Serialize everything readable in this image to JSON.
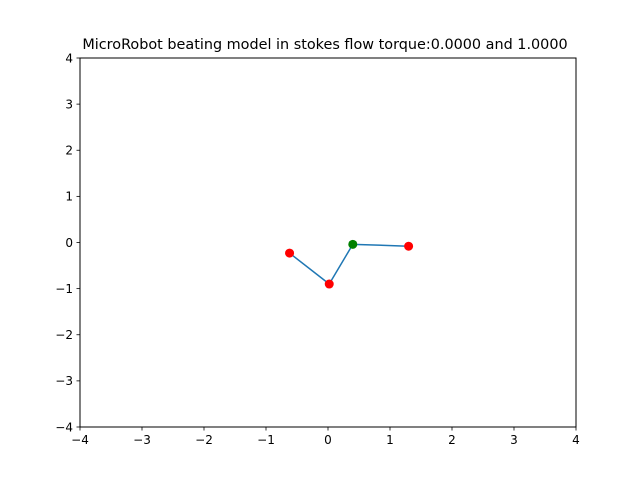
{
  "chart_data": {
    "type": "line",
    "title": "MicroRobot beating model in stokes flow torque:0.0000 and 1.0000",
    "xlabel": "",
    "ylabel": "",
    "xlim": [
      -4,
      4
    ],
    "ylim": [
      -4,
      4
    ],
    "grid": false,
    "x_ticks": [
      {
        "value": -4,
        "label": "−4"
      },
      {
        "value": -3,
        "label": "−3"
      },
      {
        "value": -2,
        "label": "−2"
      },
      {
        "value": -1,
        "label": "−1"
      },
      {
        "value": 0,
        "label": "0"
      },
      {
        "value": 1,
        "label": "1"
      },
      {
        "value": 2,
        "label": "2"
      },
      {
        "value": 3,
        "label": "3"
      },
      {
        "value": 4,
        "label": "4"
      }
    ],
    "y_ticks": [
      {
        "value": -4,
        "label": "−4"
      },
      {
        "value": -3,
        "label": "−3"
      },
      {
        "value": -2,
        "label": "−2"
      },
      {
        "value": -1,
        "label": "−1"
      },
      {
        "value": 0,
        "label": "0"
      },
      {
        "value": 1,
        "label": "1"
      },
      {
        "value": 2,
        "label": "2"
      },
      {
        "value": 3,
        "label": "3"
      },
      {
        "value": 4,
        "label": "4"
      }
    ],
    "series": [
      {
        "style": "line",
        "color": "#1f77b4",
        "x": [
          -0.62,
          0.02,
          0.4,
          1.3
        ],
        "y": [
          -0.23,
          -0.9,
          -0.04,
          -0.08
        ]
      },
      {
        "style": "marker",
        "color": "#ff0000",
        "x": [
          -0.62,
          0.02,
          1.3
        ],
        "y": [
          -0.23,
          -0.9,
          -0.08
        ]
      },
      {
        "style": "marker",
        "color": "#008000",
        "x": [
          0.4
        ],
        "y": [
          -0.04
        ]
      }
    ]
  }
}
